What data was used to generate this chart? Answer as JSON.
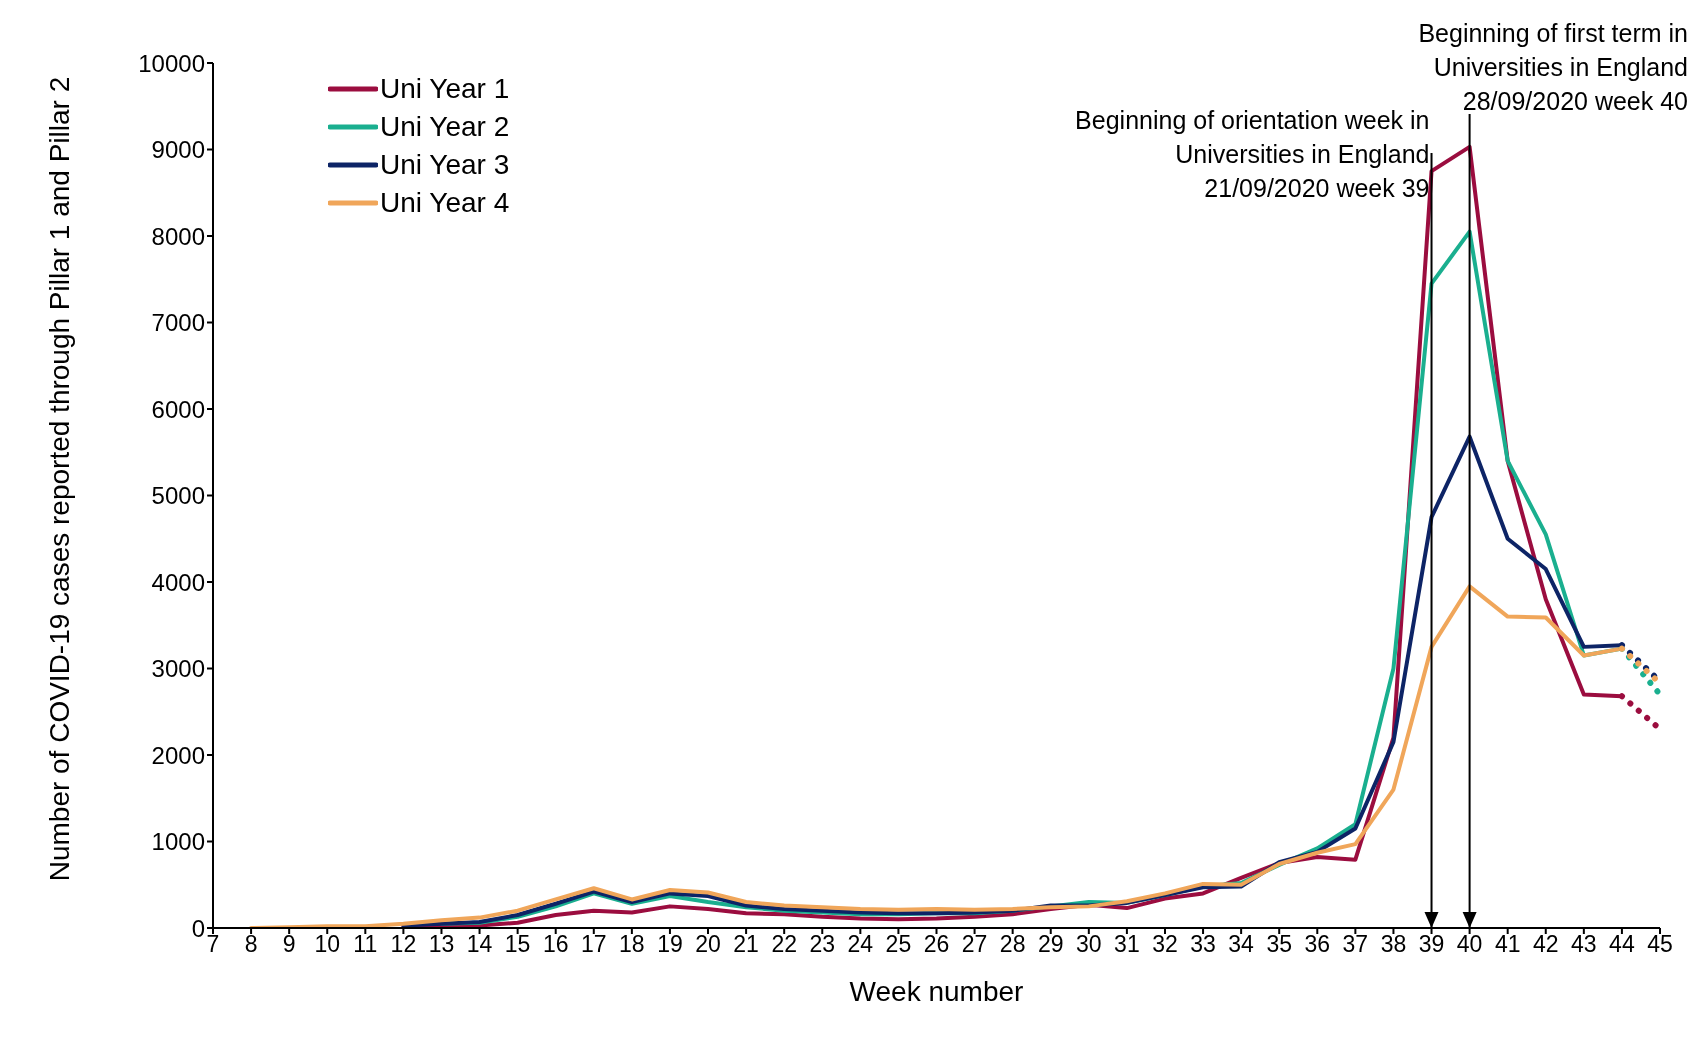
{
  "chart_data": {
    "type": "line",
    "xlabel": "Week number",
    "ylabel": "Number of COVID-19 cases reported through Pillar 1 and Pillar 2",
    "categories": [
      "7",
      "8",
      "9",
      "10",
      "11",
      "12",
      "13",
      "14",
      "15",
      "16",
      "17",
      "18",
      "19",
      "20",
      "21",
      "22",
      "23",
      "24",
      "25",
      "26",
      "27",
      "28",
      "29",
      "30",
      "31",
      "32",
      "33",
      "34",
      "35",
      "36",
      "37",
      "38",
      "39",
      "40",
      "41",
      "42",
      "43",
      "44",
      "45"
    ],
    "ylim": [
      0,
      10000
    ],
    "yticks": [
      0,
      1000,
      2000,
      3000,
      4000,
      5000,
      6000,
      7000,
      8000,
      9000,
      10000
    ],
    "legend": "top left",
    "marker": "none",
    "series": [
      {
        "name": "Uni Year 1",
        "color": "#9b0d3f",
        "line_style": "solid",
        "values": [
          null,
          null,
          null,
          null,
          null,
          20,
          20,
          30,
          60,
          150,
          200,
          180,
          250,
          220,
          170,
          160,
          130,
          110,
          100,
          110,
          130,
          160,
          220,
          270,
          230,
          340,
          400,
          580,
          750,
          820,
          790,
          2200,
          8750,
          9030,
          5400,
          3800,
          2700,
          2680,
          null
        ]
      },
      {
        "name": "Uni Year 2",
        "color": "#1aaf8f",
        "line_style": "solid",
        "values": [
          null,
          null,
          null,
          null,
          null,
          null,
          50,
          60,
          130,
          250,
          400,
          280,
          370,
          300,
          240,
          200,
          180,
          160,
          160,
          170,
          170,
          200,
          250,
          300,
          290,
          380,
          480,
          520,
          730,
          920,
          1200,
          3000,
          7450,
          8050,
          5400,
          4550,
          3150,
          3230,
          null
        ]
      },
      {
        "name": "Uni Year 3",
        "color": "#0d2466",
        "line_style": "solid",
        "values": [
          null,
          null,
          null,
          null,
          null,
          30,
          50,
          70,
          150,
          280,
          420,
          300,
          400,
          370,
          260,
          220,
          200,
          180,
          170,
          170,
          180,
          200,
          260,
          260,
          290,
          380,
          470,
          480,
          760,
          880,
          1150,
          2150,
          4750,
          5680,
          4500,
          4150,
          3250,
          3270,
          null
        ]
      },
      {
        "name": "Uni Year 4",
        "color": "#f0a65a",
        "line_style": "solid",
        "values": [
          null,
          0,
          10,
          20,
          20,
          50,
          90,
          120,
          200,
          330,
          460,
          330,
          440,
          410,
          300,
          260,
          240,
          220,
          210,
          220,
          210,
          220,
          240,
          250,
          310,
          400,
          510,
          500,
          740,
          870,
          970,
          1600,
          3250,
          3950,
          3600,
          3590,
          3150,
          3230,
          null
        ]
      },
      {
        "color": "#9b0d3f",
        "line_style": "dotted",
        "values": [
          null,
          null,
          null,
          null,
          null,
          null,
          null,
          null,
          null,
          null,
          null,
          null,
          null,
          null,
          null,
          null,
          null,
          null,
          null,
          null,
          null,
          null,
          null,
          null,
          null,
          null,
          null,
          null,
          null,
          null,
          null,
          null,
          null,
          null,
          null,
          null,
          null,
          2680,
          2300
        ]
      },
      {
        "color": "#1aaf8f",
        "line_style": "dotted",
        "values": [
          null,
          null,
          null,
          null,
          null,
          null,
          null,
          null,
          null,
          null,
          null,
          null,
          null,
          null,
          null,
          null,
          null,
          null,
          null,
          null,
          null,
          null,
          null,
          null,
          null,
          null,
          null,
          null,
          null,
          null,
          null,
          null,
          null,
          null,
          null,
          null,
          null,
          3230,
          2700
        ]
      },
      {
        "color": "#0d2466",
        "line_style": "dotted",
        "values": [
          null,
          null,
          null,
          null,
          null,
          null,
          null,
          null,
          null,
          null,
          null,
          null,
          null,
          null,
          null,
          null,
          null,
          null,
          null,
          null,
          null,
          null,
          null,
          null,
          null,
          null,
          null,
          null,
          null,
          null,
          null,
          null,
          null,
          null,
          null,
          null,
          null,
          3270,
          2850
        ]
      },
      {
        "color": "#f0a65a",
        "line_style": "dotted",
        "values": [
          null,
          null,
          null,
          null,
          null,
          null,
          null,
          null,
          null,
          null,
          null,
          null,
          null,
          null,
          null,
          null,
          null,
          null,
          null,
          null,
          null,
          null,
          null,
          null,
          null,
          null,
          null,
          null,
          null,
          null,
          null,
          null,
          null,
          null,
          null,
          null,
          null,
          3230,
          2830
        ]
      }
    ],
    "ref_lines": [
      {
        "axis": "x",
        "value": "39",
        "label": "Beginning of orientation week in Universities in England 21/09/2020 week 39",
        "color": "#000000"
      },
      {
        "axis": "x",
        "value": "40",
        "label": "Beginning of first term in Universities in England 28/09/2020 week 40",
        "color": "#000000"
      }
    ]
  }
}
